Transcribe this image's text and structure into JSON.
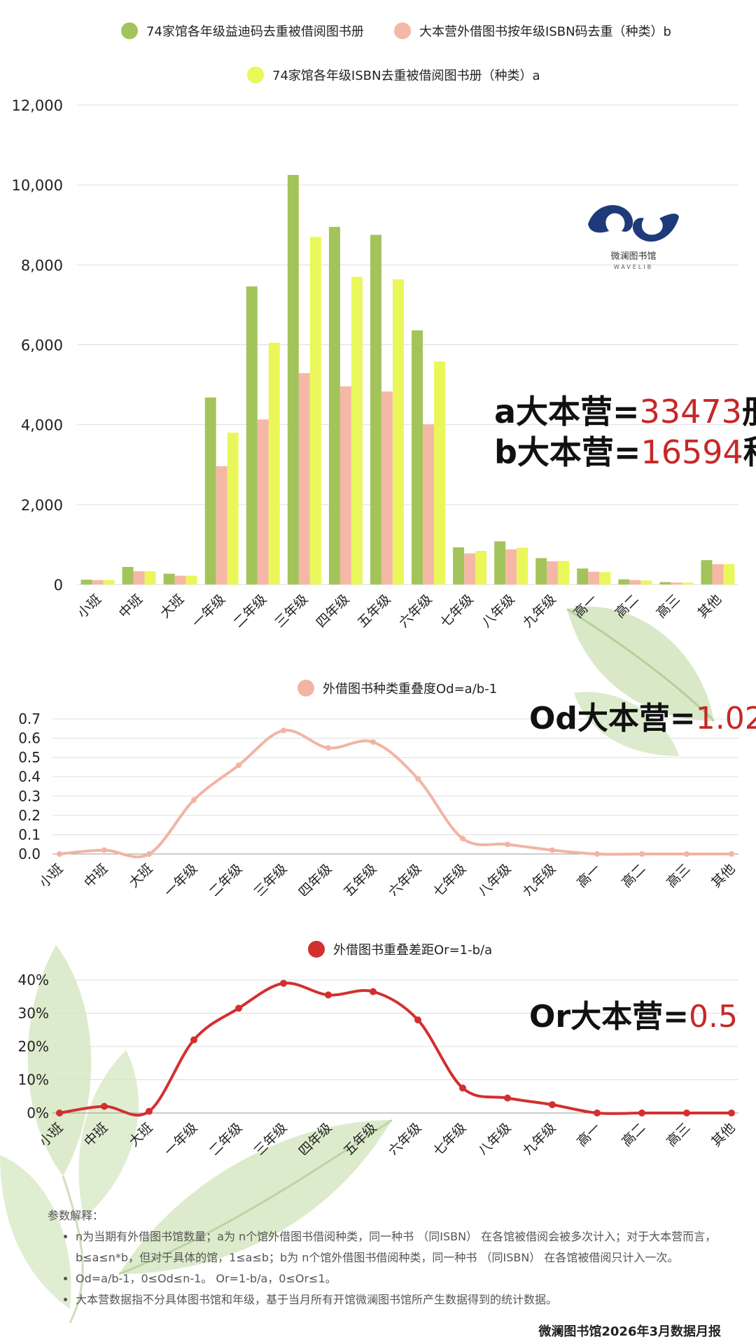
{
  "colors": {
    "series_green": "#a3c45a",
    "series_pink": "#f5b8a6",
    "series_yellow": "#eaf75a",
    "od_line": "#f2b4a3",
    "or_line": "#d32f2f",
    "highlight": "#c62828"
  },
  "chart_data": [
    {
      "type": "bar",
      "categories": [
        "小班",
        "中班",
        "大班",
        "一年级",
        "二年级",
        "三年级",
        "四年级",
        "五年级",
        "六年级",
        "七年级",
        "八年级",
        "九年级",
        "高一",
        "高二",
        "高三",
        "其他"
      ],
      "series": [
        {
          "name": "74家馆各年级益迪码去重被借阅图书册",
          "values": [
            120,
            440,
            270,
            4680,
            7460,
            10250,
            8950,
            8750,
            6360,
            930,
            1080,
            660,
            400,
            130,
            60,
            610
          ]
        },
        {
          "name": "大本营外借图书按年级ISBN码去重（种类）b",
          "values": [
            110,
            330,
            220,
            2960,
            4130,
            5290,
            4960,
            4830,
            4010,
            780,
            880,
            580,
            320,
            110,
            50,
            510
          ]
        },
        {
          "name": "74家馆各年级ISBN去重被借阅图书册（种类）a",
          "values": [
            110,
            330,
            220,
            3800,
            6050,
            8700,
            7700,
            7640,
            5580,
            840,
            920,
            590,
            310,
            100,
            50,
            510
          ]
        }
      ],
      "ylim": [
        0,
        12000
      ],
      "yticks": [
        "0",
        "2,000",
        "4,000",
        "6,000",
        "8,000",
        "10,000",
        "12,000"
      ],
      "grid": true,
      "legend": "top-center"
    },
    {
      "type": "line",
      "categories": [
        "小班",
        "中班",
        "大班",
        "一年级",
        "二年级",
        "三年级",
        "四年级",
        "五年级",
        "六年级",
        "七年级",
        "八年级",
        "九年级",
        "高一",
        "高二",
        "高三",
        "其他"
      ],
      "series": [
        {
          "name": "外借图书种类重叠度Od=a/b-1",
          "values": [
            0.0,
            0.02,
            0.0,
            0.28,
            0.46,
            0.64,
            0.55,
            0.58,
            0.39,
            0.08,
            0.05,
            0.02,
            0.0,
            0.0,
            0.0,
            0.0
          ]
        }
      ],
      "ylim": [
        0,
        0.7
      ],
      "yticks": [
        "0.0",
        "0.1",
        "0.2",
        "0.3",
        "0.4",
        "0.5",
        "0.6",
        "0.7"
      ],
      "grid": true,
      "legend": "top-center"
    },
    {
      "type": "line",
      "categories": [
        "小班",
        "中班",
        "大班",
        "一年级",
        "二年级",
        "三年级",
        "四年级",
        "五年级",
        "六年级",
        "七年级",
        "八年级",
        "九年级",
        "高一",
        "高二",
        "高三",
        "其他"
      ],
      "series": [
        {
          "name": "外借图书重叠差距Or=1-b/a",
          "values": [
            0.0,
            0.02,
            0.005,
            0.22,
            0.315,
            0.39,
            0.355,
            0.365,
            0.28,
            0.075,
            0.045,
            0.025,
            0.0,
            0.0,
            0.0,
            0.0
          ]
        }
      ],
      "ylim": [
        0,
        0.4
      ],
      "yticks": [
        "0%",
        "10%",
        "20%",
        "30%",
        "40%"
      ],
      "grid": true,
      "legend": "top-center"
    }
  ],
  "stats": {
    "a_prefix": "a大本营=",
    "a_value": "33473",
    "a_unit": "册",
    "b_prefix": "b大本营=",
    "b_value": "16594",
    "b_unit": "种",
    "od_prefix": "Od大本营=",
    "od_value": "1.02",
    "or_prefix": "Or大本营=",
    "or_value": "0.5"
  },
  "logo": {
    "name": "微澜图书馆",
    "sub": "WAVELIB"
  },
  "notes": {
    "title": "参数解释：",
    "items": [
      "n为当期有外借图书馆数量；a为 n个馆外借图书借阅种类，同一种书 （同ISBN） 在各馆被借阅会被多次计入；对于大本营而言，b≤a≤n*b，但对于具体的馆，1≤a≤b；b为 n个馆外借图书借阅种类，同一种书 （同ISBN） 在各馆被借阅只计入一次。",
      "Od=a/b-1，0≤Od≤n-1。 Or=1-b/a，0≤Or≤1。",
      "大本营数据指不分具体图书馆和年级，基于当月所有开馆微澜图书馆所产生数据得到的统计数据。"
    ]
  },
  "footer": "微澜图书馆2026年3月数据月报"
}
